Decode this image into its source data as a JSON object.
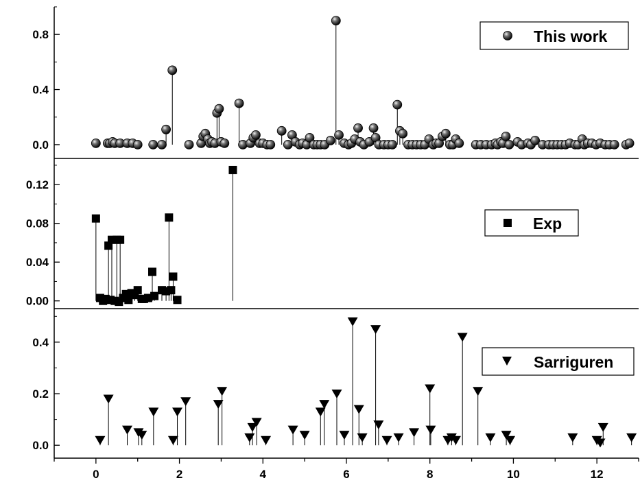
{
  "chart_data": [
    {
      "type": "scatter",
      "style": "stem",
      "marker": "sphere",
      "xlim": [
        -1,
        13
      ],
      "ylim": [
        -0.1,
        1.0
      ],
      "yticks": [
        0.0,
        0.4,
        0.8
      ],
      "ytick_labels": [
        "0.0",
        "0.4",
        "0.8"
      ],
      "legend": {
        "label": "This work",
        "position": "top-right"
      },
      "series": [
        {
          "x": [
            0.0,
            0.28,
            0.33,
            0.4,
            0.45,
            0.58,
            0.75,
            0.88,
            1.0,
            1.37,
            1.58,
            1.68,
            1.83,
            2.23,
            2.52,
            2.57,
            2.62,
            2.68,
            2.73,
            2.78,
            2.85,
            2.9,
            2.95,
            3.0,
            3.08,
            3.43,
            3.52,
            3.7,
            3.77,
            3.83,
            3.92,
            4.0,
            4.1,
            4.18,
            4.45,
            4.6,
            4.7,
            4.78,
            4.88,
            4.95,
            5.05,
            5.12,
            5.22,
            5.3,
            5.38,
            5.48,
            5.62,
            5.75,
            5.82,
            5.95,
            6.05,
            6.12,
            6.2,
            6.28,
            6.33,
            6.42,
            6.55,
            6.65,
            6.7,
            6.78,
            6.9,
            7.0,
            7.1,
            7.22,
            7.28,
            7.35,
            7.48,
            7.58,
            7.68,
            7.78,
            7.88,
            7.98,
            8.08,
            8.15,
            8.22,
            8.3,
            8.38,
            8.48,
            8.55,
            8.62,
            8.7,
            9.1,
            9.22,
            9.35,
            9.48,
            9.57,
            9.62,
            9.7,
            9.75,
            9.82,
            9.9,
            10.1,
            10.2,
            10.35,
            10.42,
            10.52,
            10.7,
            10.85,
            10.95,
            11.05,
            11.15,
            11.25,
            11.35,
            11.48,
            11.55,
            11.65,
            11.7,
            11.78,
            11.88,
            11.98,
            12.08,
            12.2,
            12.3,
            12.42,
            12.7,
            12.78
          ],
          "y": [
            0.01,
            0.01,
            0.01,
            0.02,
            0.01,
            0.01,
            0.01,
            0.01,
            0.0,
            0.0,
            0.0,
            0.11,
            0.54,
            0.0,
            0.01,
            0.06,
            0.08,
            0.04,
            0.01,
            0.02,
            0.01,
            0.23,
            0.26,
            0.02,
            0.01,
            0.3,
            0.0,
            0.01,
            0.05,
            0.07,
            0.01,
            0.01,
            0.0,
            0.0,
            0.1,
            0.0,
            0.07,
            0.02,
            0.0,
            0.01,
            0.0,
            0.05,
            0.0,
            0.0,
            0.0,
            0.0,
            0.03,
            0.9,
            0.07,
            0.01,
            0.0,
            0.01,
            0.04,
            0.12,
            0.02,
            0.0,
            0.02,
            0.12,
            0.05,
            0.0,
            0.0,
            0.0,
            0.0,
            0.29,
            0.1,
            0.08,
            0.0,
            0.0,
            0.0,
            0.0,
            0.0,
            0.04,
            0.0,
            0.01,
            0.01,
            0.06,
            0.08,
            0.0,
            0.0,
            0.04,
            0.01,
            0.0,
            0.0,
            0.0,
            0.0,
            0.01,
            0.0,
            0.02,
            0.01,
            0.06,
            0.0,
            0.02,
            0.0,
            0.01,
            0.0,
            0.03,
            0.0,
            0.0,
            0.0,
            0.0,
            0.0,
            0.0,
            0.01,
            0.0,
            0.0,
            0.04,
            0.0,
            0.01,
            0.01,
            0.0,
            0.01,
            0.0,
            0.0,
            0.0,
            0.0,
            0.01
          ]
        }
      ]
    },
    {
      "type": "scatter",
      "style": "stem",
      "marker": "square",
      "xlim": [
        -1,
        13
      ],
      "ylim": [
        -0.008,
        0.147
      ],
      "yticks": [
        0.0,
        0.04,
        0.08,
        0.12
      ],
      "ytick_labels": [
        "0.00",
        "0.04",
        "0.08",
        "0.12"
      ],
      "legend": {
        "label": "Exp",
        "position": "right"
      },
      "series": [
        {
          "x": [
            0.0,
            0.1,
            0.17,
            0.23,
            0.3,
            0.35,
            0.38,
            0.45,
            0.5,
            0.55,
            0.58,
            0.65,
            0.72,
            0.78,
            0.85,
            0.93,
            1.0,
            1.1,
            1.15,
            1.25,
            1.35,
            1.4,
            1.58,
            1.68,
            1.75,
            1.8,
            1.85,
            1.95,
            3.28
          ],
          "y": [
            0.085,
            0.003,
            0.0,
            0.002,
            0.057,
            0.001,
            0.063,
            0.0,
            0.063,
            -0.001,
            0.063,
            0.003,
            0.007,
            0.001,
            0.008,
            0.006,
            0.011,
            0.002,
            0.002,
            0.003,
            0.03,
            0.005,
            0.011,
            0.01,
            0.086,
            0.011,
            0.025,
            0.001,
            0.135
          ]
        }
      ]
    },
    {
      "type": "scatter",
      "style": "stem",
      "marker": "triangle-down",
      "xlim": [
        -1,
        13
      ],
      "ylim": [
        -0.05,
        0.53
      ],
      "yticks": [
        0.0,
        0.2,
        0.4
      ],
      "ytick_labels": [
        "0.0",
        "0.2",
        "0.4"
      ],
      "xticks": [
        0,
        2,
        4,
        6,
        8,
        10,
        12
      ],
      "xtick_labels": [
        "0",
        "2",
        "4",
        "6",
        "8",
        "10",
        "12"
      ],
      "legend": {
        "label": "Sarriguren",
        "position": "right"
      },
      "series": [
        {
          "x": [
            0.1,
            0.3,
            0.75,
            1.02,
            1.1,
            1.38,
            1.85,
            1.95,
            2.15,
            2.93,
            3.02,
            3.68,
            3.75,
            3.85,
            4.07,
            4.72,
            5.0,
            5.38,
            5.47,
            5.77,
            5.95,
            6.15,
            6.3,
            6.38,
            6.7,
            6.77,
            6.97,
            7.25,
            7.62,
            8.0,
            8.02,
            8.43,
            8.52,
            8.62,
            8.78,
            9.15,
            9.45,
            9.83,
            9.92,
            11.42,
            12.0,
            12.08,
            12.15,
            12.83
          ],
          "y": [
            0.02,
            0.18,
            0.06,
            0.05,
            0.04,
            0.13,
            0.02,
            0.13,
            0.17,
            0.16,
            0.21,
            0.03,
            0.07,
            0.09,
            0.02,
            0.06,
            0.04,
            0.13,
            0.16,
            0.2,
            0.04,
            0.48,
            0.14,
            0.03,
            0.45,
            0.08,
            0.02,
            0.03,
            0.05,
            0.22,
            0.06,
            0.02,
            0.03,
            0.02,
            0.42,
            0.21,
            0.03,
            0.04,
            0.02,
            0.03,
            0.02,
            0.01,
            0.07,
            0.03
          ]
        }
      ]
    }
  ]
}
